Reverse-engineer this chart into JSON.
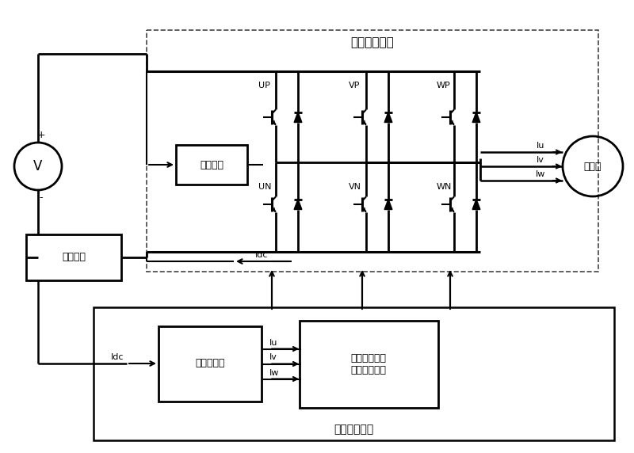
{
  "bg_color": "#ffffff",
  "line_color": "#000000",
  "fig_width": 8.0,
  "fig_height": 5.72,
  "dpi": 100,
  "labels": {
    "smart_freq_module": "智能变频模块",
    "smart_ctrl_module": "智能控制模块",
    "overcurrent": "过流保护",
    "detect_resistor": "检测电阻",
    "current_calc": "电流演算器",
    "vector_ctrl": "矢量控制分析\n和变频控制部",
    "compressor": "压缩机",
    "V_label": "V",
    "plus": "+",
    "minus": "-",
    "UP": "UP",
    "VP": "VP",
    "WP": "WP",
    "UN": "UN",
    "VN": "VN",
    "WN": "WN",
    "Iu": "Iu",
    "Iv": "Iv",
    "Iw": "Iw",
    "Idc": "Idc"
  }
}
